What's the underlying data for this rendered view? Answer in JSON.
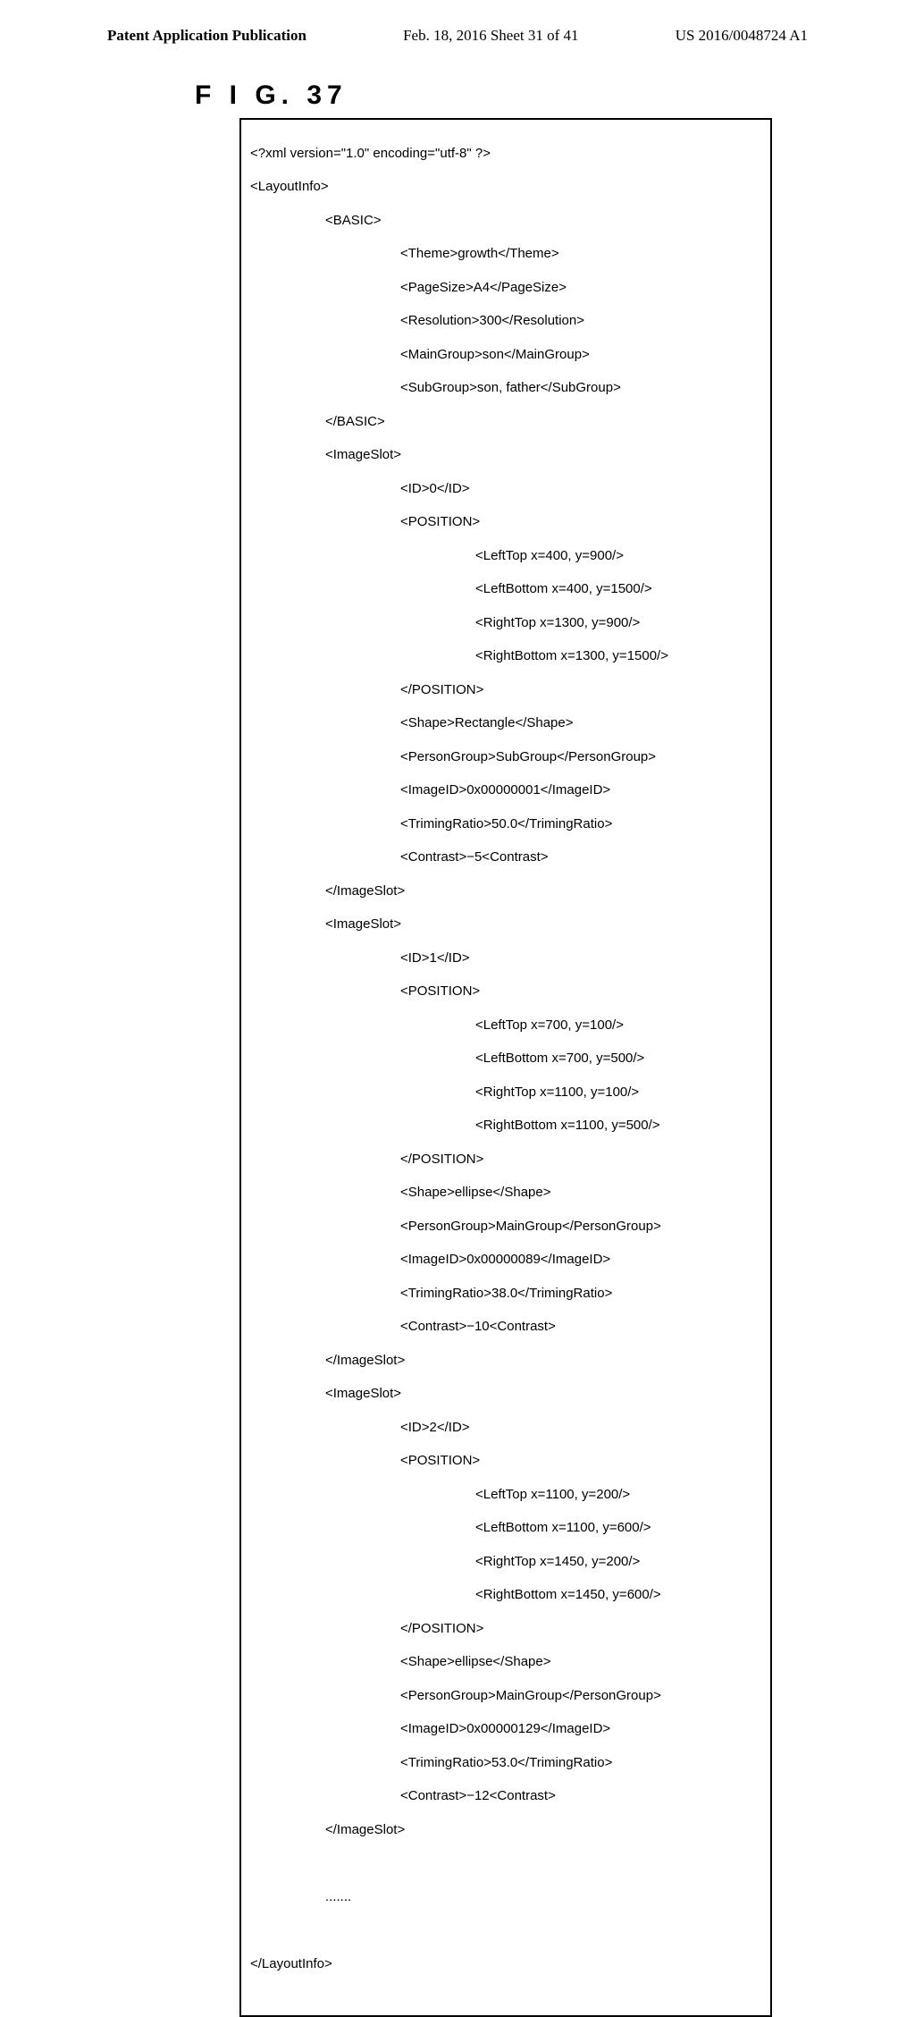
{
  "header": {
    "left": "Patent Application Publication",
    "center": "Feb. 18, 2016  Sheet 31 of 41",
    "right": "US 2016/0048724 A1"
  },
  "figure_label": "F I G.  37",
  "xml": {
    "decl": "<?xml version=\"1.0\" encoding=\"utf-8\" ?>",
    "root_open": "<LayoutInfo>",
    "basic_open": "<BASIC>",
    "theme": "<Theme>growth</Theme>",
    "pagesize": "<PageSize>A4</PageSize>",
    "resolution": "<Resolution>300</Resolution>",
    "maingroup": "<MainGroup>son</MainGroup>",
    "subgroup": "<SubGroup>son, father</SubGroup>",
    "basic_close": "</BASIC>",
    "slot0": {
      "open": "<ImageSlot>",
      "id": "<ID>0</ID>",
      "pos_open": "<POSITION>",
      "lt": "<LeftTop x=400, y=900/>",
      "lb": "<LeftBottom x=400, y=1500/>",
      "rt": "<RightTop x=1300, y=900/>",
      "rb": "<RightBottom x=1300, y=1500/>",
      "pos_close": "</POSITION>",
      "shape": "<Shape>Rectangle</Shape>",
      "pg": "<PersonGroup>SubGroup</PersonGroup>",
      "imgid": "<ImageID>0x00000001</ImageID>",
      "trim": "<TrimingRatio>50.0</TrimingRatio>",
      "contrast": "<Contrast>−5<Contrast>",
      "close": "</ImageSlot>"
    },
    "slot1": {
      "open": "<ImageSlot>",
      "id": "<ID>1</ID>",
      "pos_open": "<POSITION>",
      "lt": "<LeftTop x=700, y=100/>",
      "lb": "<LeftBottom x=700, y=500/>",
      "rt": "<RightTop x=1100, y=100/>",
      "rb": "<RightBottom x=1100, y=500/>",
      "pos_close": "</POSITION>",
      "shape": "<Shape>ellipse</Shape>",
      "pg": "<PersonGroup>MainGroup</PersonGroup>",
      "imgid": "<ImageID>0x00000089</ImageID>",
      "trim": "<TrimingRatio>38.0</TrimingRatio>",
      "contrast": "<Contrast>−10<Contrast>",
      "close": "</ImageSlot>"
    },
    "slot2": {
      "open": "<ImageSlot>",
      "id": "<ID>2</ID>",
      "pos_open": "<POSITION>",
      "lt": "<LeftTop x=1100, y=200/>",
      "lb": "<LeftBottom x=1100, y=600/>",
      "rt": "<RightTop x=1450, y=200/>",
      "rb": "<RightBottom x=1450, y=600/>",
      "pos_close": "</POSITION>",
      "shape": "<Shape>ellipse</Shape>",
      "pg": "<PersonGroup>MainGroup</PersonGroup>",
      "imgid": "<ImageID>0x00000129</ImageID>",
      "trim": "<TrimingRatio>53.0</TrimingRatio>",
      "contrast": "<Contrast>−12<Contrast>",
      "close": "</ImageSlot>"
    },
    "ellipsis": ".......",
    "root_close": "</LayoutInfo>"
  }
}
